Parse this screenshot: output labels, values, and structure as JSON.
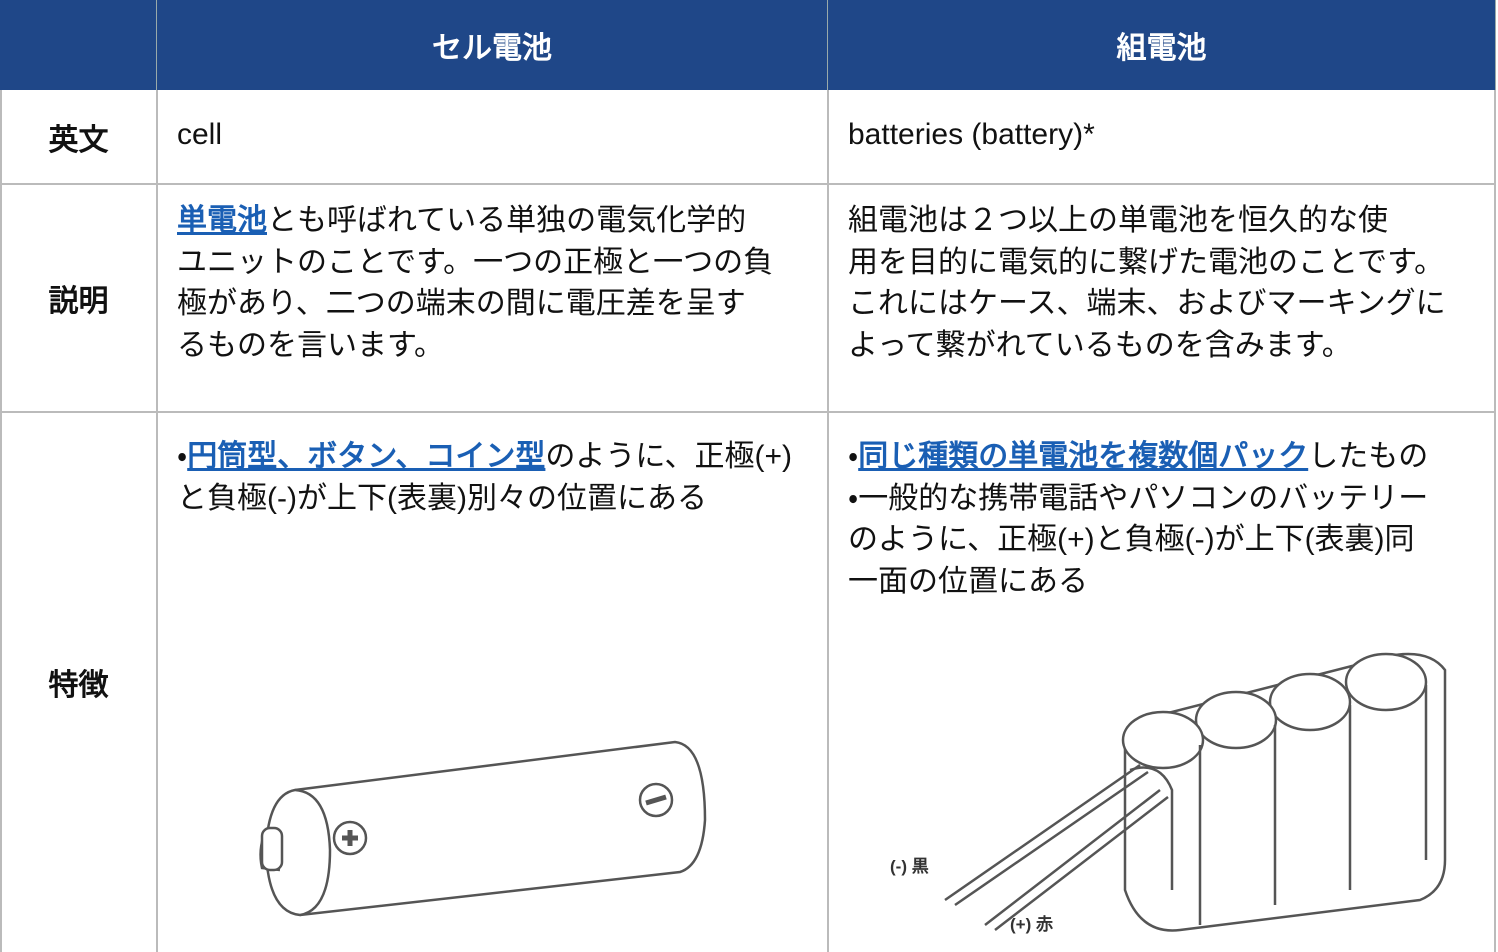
{
  "table": {
    "header": [
      "セル電池",
      "組電池"
    ],
    "rows": [
      {
        "label": "英文",
        "cells": [
          [
            [
              {
                "text": "cell"
              }
            ]
          ],
          [
            [
              {
                "text": "batteries (battery)*"
              }
            ]
          ]
        ]
      },
      {
        "label": "説明",
        "cells": [
          [
            [
              {
                "text": "単電池",
                "link": true
              },
              {
                "text": "とも呼ばれている単独の電気化学的"
              }
            ],
            [
              {
                "text": "ユニットのことです。一つの正極と一つの負"
              }
            ],
            [
              {
                "text": "極があり、二つの端末の間に電圧差を呈す"
              }
            ],
            [
              {
                "text": "るものを言います。"
              }
            ]
          ],
          [
            [
              {
                "text": "組電池は２つ以上の単電池を恒久的な使"
              }
            ],
            [
              {
                "text": "用を目的に電気的に繋げた電池のことです。"
              }
            ],
            [
              {
                "text": "これにはケース、端末、およびマーキングに"
              }
            ],
            [
              {
                "text": "よって繋がれているものを含みます。"
              }
            ]
          ]
        ]
      },
      {
        "label": "特徴",
        "cells": [
          [
            [
              {
                "text": "・"
              },
              {
                "text": "円筒型、ボタン、コイン型",
                "link": true
              },
              {
                "text": "のように、正極(+)"
              }
            ],
            [
              {
                "text": "と負極(-)が上下(表裏)別々の位置にある"
              }
            ]
          ],
          [
            [
              {
                "text": "・"
              },
              {
                "text": "同じ種類の単電池を複数個パック",
                "link": true
              },
              {
                "text": "したもの"
              }
            ],
            [
              {
                "text": "・一般的な携帯電話やパソコンのバッテリー"
              }
            ],
            [
              {
                "text": "のように、正極(+)と負極(-)が上下(表裏)同"
              }
            ],
            [
              {
                "text": "一面の位置にある"
              }
            ]
          ]
        ]
      }
    ]
  },
  "figure": {
    "labels": [
      "(-) 黒",
      "(+) 赤"
    ]
  }
}
